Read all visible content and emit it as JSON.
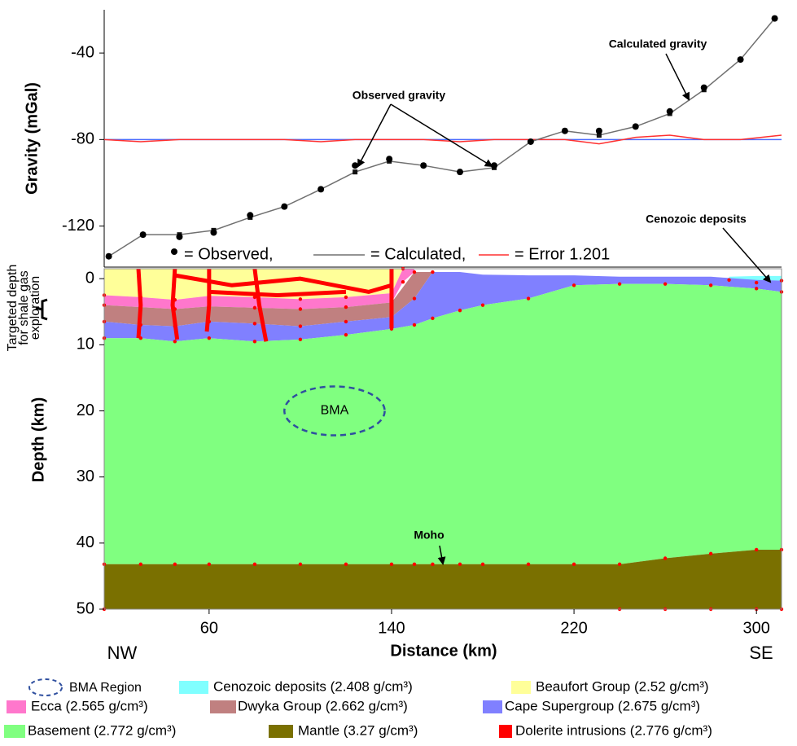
{
  "chart_data": [
    {
      "type": "line",
      "ylabel": "Gravity (mGal)",
      "xlim": [
        14,
        311
      ],
      "ylim": [
        -139,
        -20
      ],
      "yticks": [
        -40,
        -80,
        -120
      ],
      "reference_line": {
        "value": -80,
        "color": "#4d6bff"
      },
      "series": [
        {
          "name": "= Observed,",
          "color": "#000000",
          "style": "markers",
          "x": [
            16,
            31,
            47,
            62,
            78,
            93,
            109,
            124,
            139,
            154,
            170,
            185,
            201,
            216,
            231,
            247,
            262,
            277,
            293,
            308
          ],
          "values": [
            -134,
            -124,
            -125,
            -123,
            -115,
            -111,
            -103,
            -92,
            -89,
            -92,
            -95,
            -92,
            -81,
            -76,
            -76,
            -74,
            -67,
            -56,
            -43,
            -24
          ]
        },
        {
          "name": "= Calculated,",
          "color": "#707070",
          "style": "line",
          "x": [
            16,
            31,
            47,
            62,
            78,
            93,
            109,
            124,
            139,
            154,
            170,
            185,
            201,
            216,
            231,
            247,
            262,
            277,
            293,
            308
          ],
          "values": [
            -134,
            -124,
            -124,
            -122,
            -116,
            -111,
            -103,
            -95,
            -90,
            -92,
            -95,
            -93,
            -81,
            -76,
            -78,
            -74,
            -68,
            -57,
            -43,
            -24
          ]
        },
        {
          "name": "= Error 1.201",
          "color": "#ff3030",
          "style": "line",
          "x": [
            14,
            30,
            47,
            62,
            78,
            93,
            109,
            124,
            139,
            154,
            170,
            185,
            201,
            216,
            231,
            247,
            262,
            277,
            293,
            311
          ],
          "values": [
            -80,
            -81,
            -80,
            -80,
            -80,
            -80,
            -81,
            -80,
            -80,
            -80,
            -81,
            -80,
            -80,
            -80,
            -82,
            -79,
            -78,
            -80,
            -80,
            -78
          ]
        }
      ],
      "annotations": [
        "Observed gravity",
        "Calculated gravity"
      ]
    },
    {
      "type": "section",
      "xlabel": "Distance (km)",
      "ylabel": "Depth (km)",
      "xlim": [
        14,
        311
      ],
      "ylim": [
        -1.5,
        50
      ],
      "inverted": true,
      "xticks": [
        60,
        140,
        220,
        300
      ],
      "yticks": [
        0,
        10,
        20,
        30,
        40,
        50
      ],
      "ends": [
        "NW",
        "SE"
      ],
      "layers": [
        {
          "name": "Cenozoic deposits (2.408 g/cm³)",
          "color": "#80ffff",
          "x": [
            288,
            300,
            311
          ],
          "top": [
            -0.3,
            -0.4,
            -0.4
          ],
          "bottom": [
            0.2,
            0.6,
            0.3
          ]
        },
        {
          "name": "Beaufort Group (2.52 g/cm³)",
          "color": "#ffff99",
          "x": [
            14,
            30,
            45,
            60,
            80,
            100,
            120,
            140,
            145
          ],
          "top": [
            -1.5,
            -1.5,
            -1.5,
            -1.5,
            -1.5,
            -1.5,
            -1.5,
            -1.5,
            -1.5
          ],
          "bottom": [
            2.5,
            2.8,
            3.2,
            2.6,
            2.8,
            3.1,
            2.8,
            2.2,
            -1.5
          ]
        },
        {
          "name": "Ecca (2.565 g/cm³)",
          "color": "#ff77cc",
          "x": [
            14,
            30,
            45,
            60,
            80,
            100,
            120,
            140,
            145,
            150
          ],
          "top": [
            2.5,
            2.8,
            3.2,
            2.6,
            2.8,
            3.1,
            2.8,
            2.2,
            -1.5,
            -1.5
          ],
          "bottom": [
            4,
            4.3,
            4.6,
            4.2,
            4.4,
            4.6,
            4.3,
            3.6,
            0.5,
            -1
          ]
        },
        {
          "name": "Dwyka Group (2.662 g/cm³)",
          "color": "#c08080",
          "x": [
            14,
            30,
            45,
            60,
            80,
            100,
            120,
            140,
            150,
            158
          ],
          "top": [
            4,
            4.3,
            4.6,
            4.2,
            4.4,
            4.6,
            4.3,
            3.6,
            -1,
            -1
          ],
          "bottom": [
            6.5,
            7,
            7.2,
            6.5,
            6.8,
            7.2,
            6.5,
            5.8,
            3,
            -1
          ]
        },
        {
          "name": "Cape Supergroup (2.675 g/cm³)",
          "color": "#8080ff",
          "x": [
            14,
            30,
            45,
            60,
            80,
            100,
            120,
            140,
            150,
            158,
            170,
            180,
            200,
            220,
            240,
            260,
            280,
            300,
            311
          ],
          "top": [
            6.5,
            7,
            7.2,
            6.5,
            6.8,
            7.2,
            6.5,
            5.8,
            3,
            -1,
            -1,
            -0.6,
            -0.5,
            -0.5,
            -0.3,
            -0.3,
            -0.3,
            0.2,
            0.3
          ],
          "bottom": [
            9,
            9,
            9.5,
            9,
            9.5,
            9.2,
            8.5,
            7.6,
            7,
            6,
            4.8,
            4,
            3,
            1,
            0.8,
            0.8,
            1,
            1.5,
            2
          ]
        },
        {
          "name": "Basement (2.772 g/cm³)",
          "color": "#80ff80",
          "x": [
            14,
            30,
            45,
            60,
            80,
            100,
            120,
            140,
            150,
            158,
            170,
            180,
            200,
            220,
            240,
            260,
            280,
            300,
            311
          ],
          "top": [
            9,
            9,
            9.5,
            9,
            9.5,
            9.2,
            8.5,
            7.6,
            7,
            6,
            4.8,
            4,
            3,
            1,
            0.8,
            0.8,
            1,
            1.5,
            2
          ],
          "bottom": [
            43.2,
            43.2,
            43.2,
            43.2,
            43.2,
            43.2,
            43.2,
            43.2,
            43.2,
            43.2,
            43.2,
            43.2,
            43.2,
            43.2,
            43.2,
            42.3,
            41.6,
            41,
            41
          ]
        },
        {
          "name": "Mantle (3.27 g/cm³)",
          "color": "#7a7000",
          "x": [
            14,
            240,
            260,
            280,
            300,
            311
          ],
          "top": [
            43.2,
            43.2,
            42.3,
            41.6,
            41,
            41
          ],
          "bottom": [
            50,
            50,
            50,
            50,
            50,
            50
          ]
        },
        {
          "name": "Dolerite intrusions (2.776 g/cm³)",
          "color": "#ff0000",
          "intrusions": [
            {
              "x": [
                29,
                30,
                29
              ],
              "depth": [
                -1.5,
                4,
                9
              ]
            },
            {
              "x": [
                45,
                44,
                46
              ],
              "depth": [
                -1.5,
                4,
                9.2
              ]
            },
            {
              "x": [
                60,
                60,
                59
              ],
              "depth": [
                -1.5,
                4,
                8
              ]
            },
            {
              "x": [
                80,
                82,
                85
              ],
              "depth": [
                -1.5,
                4,
                9.5
              ]
            },
            {
              "x": [
                140,
                140
              ],
              "depth": [
                -1.5,
                7.5
              ]
            },
            {
              "x": [
                45,
                70,
                100,
                130,
                140
              ],
              "depth": [
                -0.5,
                1,
                0,
                2,
                1
              ]
            },
            {
              "x": [
                60,
                90,
                120
              ],
              "depth": [
                2,
                2.5,
                2
              ]
            }
          ]
        }
      ],
      "bma": {
        "label": "BMA",
        "name": "BMA Region",
        "center": [
          115,
          20
        ],
        "radii": [
          22,
          3.7
        ]
      },
      "annotations": [
        "Cenozoic deposits",
        "Moho"
      ],
      "target_label": [
        "Targeted depth",
        "for shale gas",
        "exploration"
      ]
    }
  ]
}
